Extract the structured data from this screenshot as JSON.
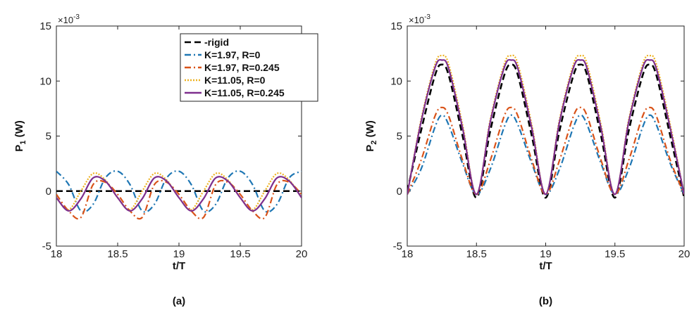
{
  "chart_data": [
    {
      "type": "line",
      "panel_label": "(a)",
      "ylabel": "P",
      "ylabel_sub": "1",
      "ylabel_unit": " (W)",
      "xlabel": "t/T",
      "xlim": [
        18,
        20
      ],
      "ylim": [
        -5,
        15
      ],
      "y_multiplier_base": "×10",
      "y_multiplier_exp": "-3",
      "xticks": [
        18,
        18.5,
        19,
        19.5,
        20
      ],
      "xtick_labels": [
        "18",
        "18.5",
        "19",
        "19.5",
        "20"
      ],
      "yticks": [
        -5,
        0,
        5,
        10,
        15
      ],
      "ytick_labels": [
        "-5",
        "0",
        "5",
        "10",
        "15"
      ],
      "legend_position": "top-right",
      "series": [
        {
          "name": "-rigid",
          "color": "#000000",
          "dash": "dashed",
          "x": [
            18,
            20
          ],
          "y": [
            0,
            0
          ]
        },
        {
          "name": "K=1.97, R=0",
          "color": "#1f77b4",
          "dash": "dash-dot",
          "x": [
            18,
            18.1,
            18.2,
            18.3,
            18.4,
            18.5,
            18.6,
            18.7,
            18.8,
            18.9,
            19,
            19.1,
            19.2,
            19.3,
            19.4,
            19.5,
            19.6,
            19.7,
            19.8,
            19.9,
            20
          ],
          "y": [
            1.8,
            0.6,
            -1.8,
            -1.2,
            1.2,
            1.8,
            0.6,
            -1.8,
            -1.2,
            1.2,
            1.8,
            0.6,
            -1.8,
            -1.2,
            1.2,
            1.8,
            0.6,
            -1.8,
            -1.2,
            1.2,
            1.8
          ]
        },
        {
          "name": "K=1.97, R=0.245",
          "color": "#d95319",
          "dash": "dash-dot",
          "x": [
            18,
            18.1,
            18.2,
            18.3,
            18.4,
            18.5,
            18.6,
            18.7,
            18.8,
            18.9,
            19,
            19.1,
            19.2,
            19.3,
            19.4,
            19.5,
            19.6,
            19.7,
            19.8,
            19.9,
            20
          ],
          "y": [
            -0.3,
            -1.8,
            -2.4,
            0.6,
            0.8,
            -0.3,
            -1.8,
            -2.4,
            0.6,
            0.8,
            -0.3,
            -1.8,
            -2.4,
            0.6,
            0.8,
            -0.3,
            -1.8,
            -2.4,
            0.6,
            0.8,
            -0.3
          ]
        },
        {
          "name": "K=11.05, R=0",
          "color": "#edb120",
          "dash": "dotted",
          "x": [
            18,
            18.1,
            18.2,
            18.3,
            18.4,
            18.5,
            18.6,
            18.7,
            18.8,
            18.9,
            19,
            19.1,
            19.2,
            19.3,
            19.4,
            19.5,
            19.6,
            19.7,
            19.8,
            19.9,
            20
          ],
          "y": [
            -0.6,
            -1.7,
            0.0,
            1.6,
            1.0,
            -0.6,
            -1.7,
            0.0,
            1.6,
            1.0,
            -0.6,
            -1.7,
            0.0,
            1.6,
            1.0,
            -0.6,
            -1.7,
            0.0,
            1.6,
            1.0,
            -0.6
          ]
        },
        {
          "name": "K=11.05, R=0.245",
          "color": "#7e2f8e",
          "dash": "solid",
          "x": [
            18,
            18.1,
            18.2,
            18.3,
            18.4,
            18.5,
            18.6,
            18.7,
            18.8,
            18.9,
            19,
            19.1,
            19.2,
            19.3,
            19.4,
            19.5,
            19.6,
            19.7,
            19.8,
            19.9,
            20
          ],
          "y": [
            -0.6,
            -1.8,
            -0.7,
            1.2,
            0.9,
            -0.6,
            -1.8,
            -0.7,
            1.2,
            0.9,
            -0.6,
            -1.8,
            -0.7,
            1.2,
            0.9,
            -0.6,
            -1.8,
            -0.7,
            1.2,
            0.9,
            -0.6
          ]
        }
      ]
    },
    {
      "type": "line",
      "panel_label": "(b)",
      "ylabel": "P",
      "ylabel_sub": "2",
      "ylabel_unit": " (W)",
      "xlabel": "t/T",
      "xlim": [
        18,
        20
      ],
      "ylim": [
        -5,
        15
      ],
      "y_multiplier_base": "×10",
      "y_multiplier_exp": "-3",
      "xticks": [
        18,
        18.5,
        19,
        19.5,
        20
      ],
      "xtick_labels": [
        "18",
        "18.5",
        "19",
        "19.5",
        "20"
      ],
      "yticks": [
        -5,
        0,
        5,
        10,
        15
      ],
      "ytick_labels": [
        "-5",
        "0",
        "5",
        "10",
        "15"
      ],
      "series": [
        {
          "name": "-rigid",
          "color": "#000000",
          "dash": "dashed",
          "x": [
            18,
            18.1,
            18.2,
            18.25,
            18.3,
            18.4,
            18.5,
            18.6,
            18.7,
            18.75,
            18.8,
            18.9,
            19,
            19.1,
            19.2,
            19.25,
            19.3,
            19.4,
            19.5,
            19.6,
            19.7,
            19.75,
            19.8,
            19.9,
            20
          ],
          "y": [
            0.0,
            5.5,
            10.5,
            11.5,
            10.5,
            5.0,
            -0.6,
            5.5,
            10.5,
            11.5,
            10.5,
            5.0,
            -0.6,
            5.5,
            10.5,
            11.5,
            10.5,
            5.0,
            -0.6,
            5.5,
            10.5,
            11.5,
            10.5,
            5.0,
            -0.6
          ]
        },
        {
          "name": "K=1.97, R=0",
          "color": "#1f77b4",
          "dash": "dash-dot",
          "x": [
            18,
            18.1,
            18.2,
            18.25,
            18.3,
            18.4,
            18.5,
            18.6,
            18.7,
            18.75,
            18.8,
            18.9,
            19,
            19.1,
            19.2,
            19.25,
            19.3,
            19.4,
            19.5,
            19.6,
            19.7,
            19.75,
            19.8,
            19.9,
            20
          ],
          "y": [
            -0.3,
            2.0,
            5.8,
            6.9,
            6.0,
            2.5,
            -0.3,
            2.0,
            5.8,
            6.9,
            6.0,
            2.5,
            -0.3,
            2.0,
            5.8,
            6.9,
            6.0,
            2.5,
            -0.3,
            2.0,
            5.8,
            6.9,
            6.0,
            2.5,
            -0.3
          ]
        },
        {
          "name": "K=1.97, R=0.245",
          "color": "#d95319",
          "dash": "dash-dot",
          "x": [
            18,
            18.1,
            18.2,
            18.25,
            18.3,
            18.4,
            18.5,
            18.6,
            18.7,
            18.75,
            18.8,
            18.9,
            19,
            19.1,
            19.2,
            19.25,
            19.3,
            19.4,
            19.5,
            19.6,
            19.7,
            19.75,
            19.8,
            19.9,
            20
          ],
          "y": [
            -0.3,
            2.8,
            6.8,
            7.6,
            6.8,
            2.8,
            -0.3,
            2.8,
            6.8,
            7.6,
            6.8,
            2.8,
            -0.3,
            2.8,
            6.8,
            7.6,
            6.8,
            2.8,
            -0.3,
            2.8,
            6.8,
            7.6,
            6.8,
            2.8,
            -0.3
          ]
        },
        {
          "name": "K=11.05, R=0",
          "color": "#edb120",
          "dash": "dotted",
          "x": [
            18,
            18.1,
            18.2,
            18.25,
            18.3,
            18.4,
            18.5,
            18.6,
            18.7,
            18.75,
            18.8,
            18.9,
            19,
            19.1,
            19.2,
            19.25,
            19.3,
            19.4,
            19.5,
            19.6,
            19.7,
            19.75,
            19.8,
            19.9,
            20
          ],
          "y": [
            -0.3,
            6.5,
            11.5,
            12.3,
            11.5,
            6.0,
            -0.3,
            6.5,
            11.5,
            12.3,
            11.5,
            6.0,
            -0.3,
            6.5,
            11.5,
            12.3,
            11.5,
            6.0,
            -0.3,
            6.5,
            11.5,
            12.3,
            11.5,
            6.0,
            -0.3
          ]
        },
        {
          "name": "K=11.05, R=0.245",
          "color": "#7e2f8e",
          "dash": "solid",
          "x": [
            18,
            18.1,
            18.2,
            18.25,
            18.3,
            18.4,
            18.5,
            18.6,
            18.7,
            18.75,
            18.8,
            18.9,
            19,
            19.1,
            19.2,
            19.25,
            19.3,
            19.4,
            19.5,
            19.6,
            19.7,
            19.75,
            19.8,
            19.9,
            20
          ],
          "y": [
            -0.3,
            6.3,
            11.2,
            11.9,
            11.1,
            5.7,
            -0.3,
            6.3,
            11.2,
            11.9,
            11.1,
            5.7,
            -0.3,
            6.3,
            11.2,
            11.9,
            11.1,
            5.7,
            -0.3,
            6.3,
            11.2,
            11.9,
            11.1,
            5.7,
            -0.3
          ]
        }
      ]
    }
  ]
}
